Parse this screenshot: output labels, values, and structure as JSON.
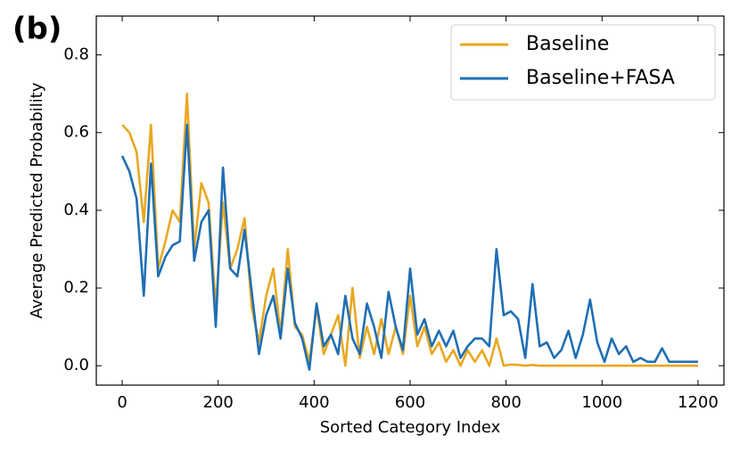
{
  "chart_data": {
    "type": "line",
    "annotation": "(b)",
    "xlabel": "Sorted Category Index",
    "ylabel": "Average Predicted Probability",
    "x": [
      0,
      15,
      30,
      45,
      60,
      75,
      90,
      105,
      120,
      135,
      150,
      165,
      180,
      195,
      210,
      225,
      240,
      255,
      270,
      285,
      300,
      315,
      330,
      345,
      360,
      375,
      390,
      405,
      420,
      435,
      450,
      465,
      480,
      495,
      510,
      525,
      540,
      555,
      570,
      585,
      600,
      615,
      630,
      645,
      660,
      675,
      690,
      705,
      720,
      735,
      750,
      765,
      780,
      795,
      810,
      825,
      840,
      855,
      870,
      885,
      900,
      915,
      930,
      945,
      960,
      975,
      990,
      1005,
      1020,
      1035,
      1050,
      1065,
      1080,
      1095,
      1110,
      1125,
      1140,
      1155,
      1170,
      1185,
      1200
    ],
    "series": [
      {
        "name": "Baseline",
        "color": "#e8a820",
        "values": [
          0.62,
          0.6,
          0.55,
          0.37,
          0.62,
          0.25,
          0.32,
          0.4,
          0.37,
          0.7,
          0.3,
          0.47,
          0.42,
          0.15,
          0.42,
          0.25,
          0.3,
          0.38,
          0.15,
          0.06,
          0.18,
          0.25,
          0.08,
          0.3,
          0.1,
          0.08,
          0.01,
          0.15,
          0.03,
          0.08,
          0.13,
          0,
          0.2,
          0.02,
          0.1,
          0.03,
          0.12,
          0.03,
          0.1,
          0.03,
          0.18,
          0.05,
          0.1,
          0.03,
          0.06,
          0.01,
          0.04,
          0,
          0.04,
          0.01,
          0.04,
          0,
          0.07,
          0,
          0.003,
          0.002,
          0,
          0.002,
          0,
          0,
          0,
          0,
          0,
          0,
          0,
          0,
          0,
          0,
          0,
          0,
          0,
          0,
          0,
          0,
          0,
          0,
          0,
          0,
          0,
          0,
          0
        ]
      },
      {
        "name": "Baseline+FASA",
        "color": "#1f6fb4",
        "values": [
          0.54,
          0.5,
          0.43,
          0.18,
          0.52,
          0.23,
          0.28,
          0.31,
          0.32,
          0.62,
          0.27,
          0.37,
          0.4,
          0.1,
          0.51,
          0.25,
          0.23,
          0.35,
          0.19,
          0.03,
          0.13,
          0.18,
          0.07,
          0.25,
          0.11,
          0.07,
          -0.01,
          0.16,
          0.05,
          0.08,
          0.03,
          0.18,
          0.07,
          0.03,
          0.16,
          0.1,
          0.02,
          0.19,
          0.1,
          0.04,
          0.25,
          0.08,
          0.12,
          0.05,
          0.09,
          0.05,
          0.09,
          0.02,
          0.05,
          0.07,
          0.07,
          0.05,
          0.3,
          0.13,
          0.14,
          0.12,
          0.02,
          0.21,
          0.05,
          0.06,
          0.02,
          0.04,
          0.09,
          0.02,
          0.08,
          0.17,
          0.06,
          0.01,
          0.07,
          0.03,
          0.05,
          0.01,
          0.02,
          0.01,
          0.01,
          0.045,
          0.01,
          0.01,
          0.01,
          0.01,
          0.01
        ]
      }
    ],
    "xlim": [
      -54,
      1254
    ],
    "ylim": [
      -0.05,
      0.9
    ],
    "xticks": [
      0,
      200,
      400,
      600,
      800,
      1000,
      1200
    ],
    "yticks": [
      {
        "value": 0,
        "label": "0.0"
      },
      0.2,
      0.4,
      0.6,
      0.8
    ],
    "legend": "upper right"
  }
}
